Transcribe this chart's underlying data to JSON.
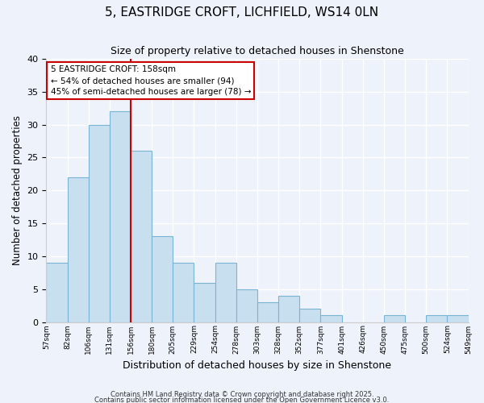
{
  "title": "5, EASTRIDGE CROFT, LICHFIELD, WS14 0LN",
  "subtitle": "Size of property relative to detached houses in Shenstone",
  "xlabel": "Distribution of detached houses by size in Shenstone",
  "ylabel": "Number of detached properties",
  "bar_color": "#c8dff0",
  "bar_edge_color": "#7ab4d4",
  "bar_heights": [
    9,
    22,
    30,
    32,
    26,
    13,
    9,
    6,
    9,
    5,
    3,
    4,
    2,
    1,
    0,
    0,
    1,
    0,
    1,
    1
  ],
  "x_labels": [
    "57sqm",
    "82sqm",
    "106sqm",
    "131sqm",
    "156sqm",
    "180sqm",
    "205sqm",
    "229sqm",
    "254sqm",
    "278sqm",
    "303sqm",
    "328sqm",
    "352sqm",
    "377sqm",
    "401sqm",
    "426sqm",
    "450sqm",
    "475sqm",
    "500sqm",
    "524sqm",
    "549sqm"
  ],
  "num_bins": 20,
  "vline_bin": 4,
  "vline_color": "#cc0000",
  "ylim": [
    0,
    40
  ],
  "yticks": [
    0,
    5,
    10,
    15,
    20,
    25,
    30,
    35,
    40
  ],
  "annotation_title": "5 EASTRIDGE CROFT: 158sqm",
  "annotation_line1": "← 54% of detached houses are smaller (94)",
  "annotation_line2": "45% of semi-detached houses are larger (78) →",
  "annotation_box_color": "#ffffff",
  "annotation_box_edge": "#cc0000",
  "bg_color": "#eef2fa",
  "grid_color": "#ffffff",
  "footnote1": "Contains HM Land Registry data © Crown copyright and database right 2025.",
  "footnote2": "Contains public sector information licensed under the Open Government Licence v3.0."
}
